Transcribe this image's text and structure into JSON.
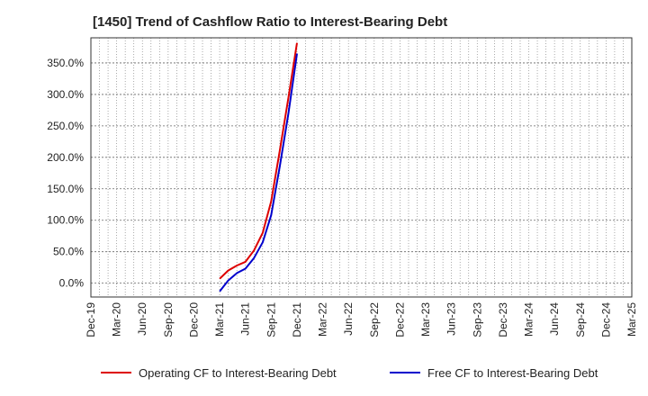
{
  "chart_data": {
    "type": "line",
    "title": "[1450]  Trend of Cashflow Ratio to Interest-Bearing Debt",
    "x": [
      "Dec-19",
      "Mar-20",
      "Jun-20",
      "Sep-20",
      "Dec-20",
      "Mar-21",
      "Jun-21",
      "Sep-21",
      "Dec-21",
      "Mar-22",
      "Jun-22",
      "Sep-22",
      "Dec-22",
      "Mar-23",
      "Jun-23",
      "Sep-23",
      "Dec-23",
      "Mar-24",
      "Jun-24",
      "Sep-24",
      "Dec-24",
      "Mar-25"
    ],
    "ylim": [
      -22,
      390
    ],
    "yticks": [
      0,
      50,
      100,
      150,
      200,
      250,
      300,
      350
    ],
    "ytick_labels": [
      "0.0%",
      "50.0%",
      "100.0%",
      "150.0%",
      "200.0%",
      "250.0%",
      "300.0%",
      "350.0%"
    ],
    "grid": true,
    "legend_position": "bottom",
    "series": [
      {
        "name": "Operating CF to Interest-Bearing Debt",
        "color": "#dd0000",
        "points": [
          [
            5,
            7
          ],
          [
            5.33,
            20
          ],
          [
            5.67,
            28
          ],
          [
            6,
            34
          ],
          [
            6.33,
            52
          ],
          [
            6.67,
            80
          ],
          [
            7,
            130
          ],
          [
            7.33,
            210
          ],
          [
            7.67,
            295
          ],
          [
            8,
            382
          ]
        ]
      },
      {
        "name": "Free CF to Interest-Bearing Debt",
        "color": "#0000cc",
        "points": [
          [
            5,
            -13
          ],
          [
            5.33,
            4
          ],
          [
            5.67,
            16
          ],
          [
            6,
            23
          ],
          [
            6.33,
            40
          ],
          [
            6.67,
            65
          ],
          [
            7,
            108
          ],
          [
            7.33,
            185
          ],
          [
            7.67,
            270
          ],
          [
            8,
            365
          ]
        ]
      }
    ]
  }
}
